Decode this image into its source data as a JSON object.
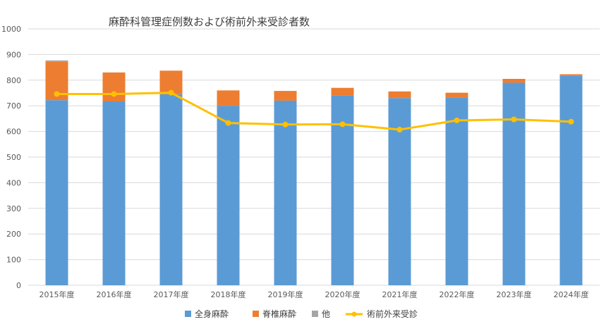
{
  "chart_data": {
    "type": "bar",
    "stacked": true,
    "title": "麻酔科管理症例数および術前外来受診者数",
    "categories": [
      "2015年度",
      "2016年度",
      "2017年度",
      "2018年度",
      "2019年度",
      "2020年度",
      "2021年度",
      "2022年度",
      "2023年度",
      "2024年度"
    ],
    "ylim": [
      0,
      1000
    ],
    "yticks": [
      0,
      100,
      200,
      300,
      400,
      500,
      600,
      700,
      800,
      900,
      1000
    ],
    "grid": true,
    "legend_position": "bottom",
    "series": [
      {
        "name": "全身麻酔",
        "type": "bar",
        "color": "#5B9BD5",
        "values": [
          722,
          717,
          745,
          700,
          720,
          740,
          730,
          733,
          790,
          818
        ]
      },
      {
        "name": "脊椎麻酔",
        "type": "bar",
        "color": "#ED7D31",
        "values": [
          150,
          113,
          92,
          60,
          38,
          30,
          26,
          18,
          15,
          5
        ]
      },
      {
        "name": "他",
        "type": "bar",
        "color": "#A5A5A5",
        "values": [
          5,
          0,
          0,
          0,
          0,
          0,
          0,
          0,
          0,
          0
        ]
      },
      {
        "name": "術前外来受診",
        "type": "line",
        "color": "#FFC000",
        "values": [
          746,
          746,
          751,
          633,
          627,
          628,
          607,
          643,
          647,
          638
        ]
      }
    ]
  }
}
